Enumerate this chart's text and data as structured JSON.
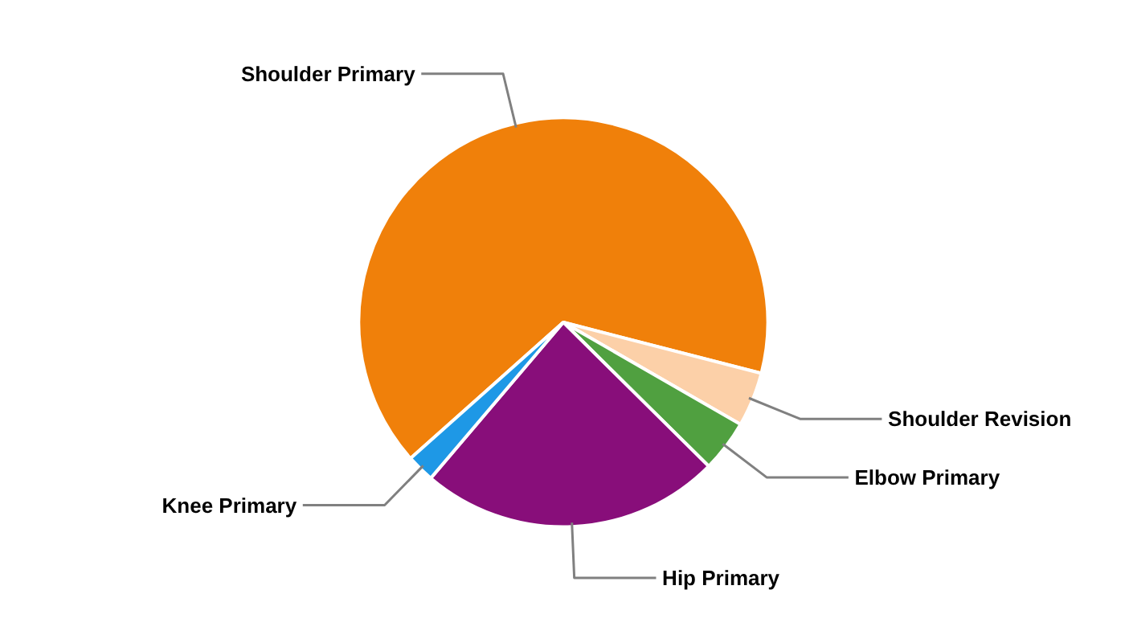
{
  "chart_data": {
    "type": "pie",
    "categories": [
      "Shoulder Primary",
      "Shoulder Revision",
      "Elbow Primary",
      "Hip Primary",
      "Knee Primary"
    ],
    "values": [
      65.6,
      4.3,
      4.1,
      23.8,
      2.2
    ],
    "colors": [
      "#f0800a",
      "#fcd0a8",
      "#50a040",
      "#880e7a",
      "#1e98e6"
    ]
  }
}
